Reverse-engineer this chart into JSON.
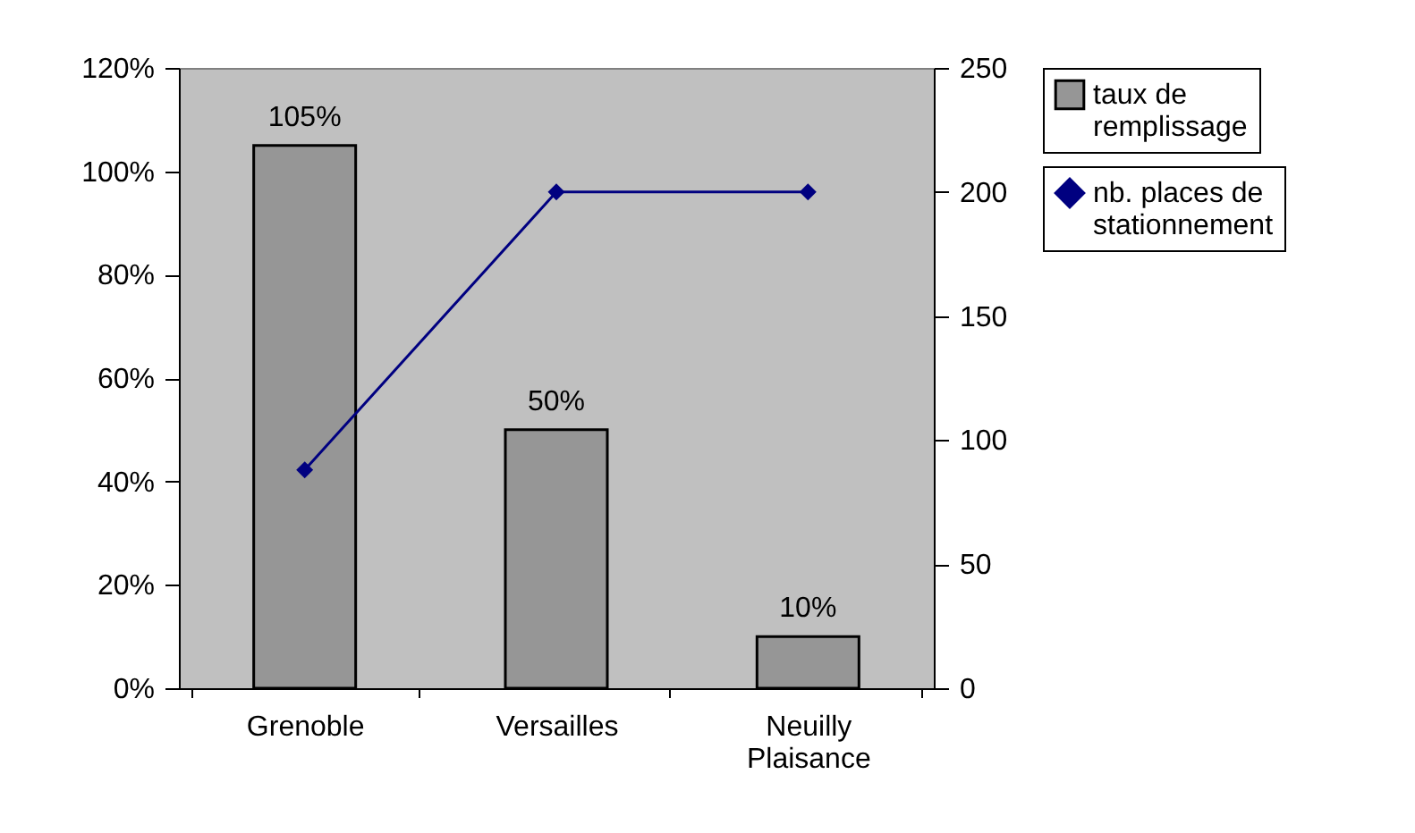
{
  "chart_data": {
    "type": "bar",
    "categories": [
      "Grenoble",
      "Versailles",
      "Neuilly Plaisance"
    ],
    "series": [
      {
        "name": "taux de remplissage",
        "color": "#969696",
        "values": [
          105,
          50,
          10
        ],
        "value_labels": [
          "105%",
          "50%",
          "10%"
        ]
      },
      {
        "name": "nb. places de stationnement",
        "type": "line",
        "axis": "y2",
        "color": "#000080",
        "values": [
          88,
          200,
          200
        ]
      }
    ],
    "ylim": [
      0,
      120
    ],
    "yticks": [
      {
        "value": 0,
        "label": "0%"
      },
      {
        "value": 20,
        "label": "20%"
      },
      {
        "value": 40,
        "label": "40%"
      },
      {
        "value": 60,
        "label": "60%"
      },
      {
        "value": 80,
        "label": "80%"
      },
      {
        "value": 100,
        "label": "100%"
      },
      {
        "value": 120,
        "label": "120%"
      }
    ],
    "y2lim": [
      0,
      250
    ],
    "y2ticks": [
      0,
      50,
      100,
      150,
      200,
      250
    ],
    "grid": false,
    "legend": "right",
    "marker": "diamond",
    "line_style": "solid"
  }
}
